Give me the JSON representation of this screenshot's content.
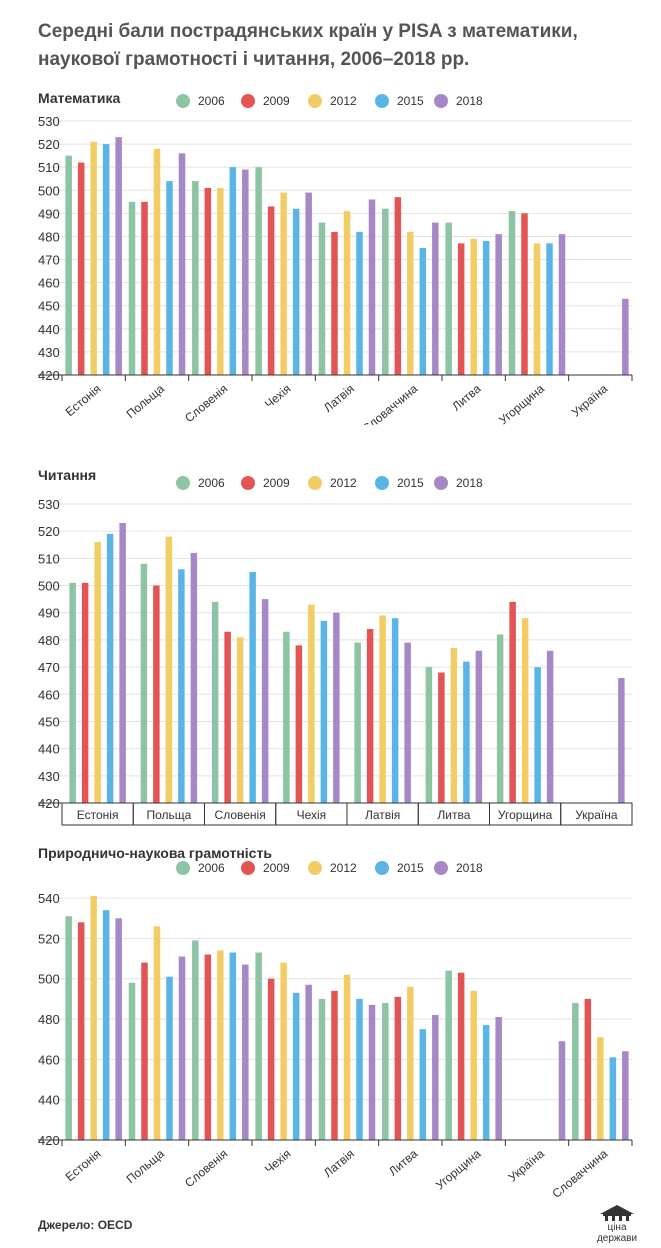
{
  "title": "Середні бали пострадянських країн у PISA з математики, наукової грамотності і читання, 2006–2018 рр.",
  "source": "Джерело: OECD",
  "logo_text": "ціна держави",
  "legend": [
    "2006",
    "2009",
    "2012",
    "2015",
    "2018"
  ],
  "colors": [
    "#8cc4a4",
    "#e35454",
    "#f2cd66",
    "#5ab5e6",
    "#a688c6"
  ],
  "chart_data": [
    {
      "type": "bar",
      "title": "Математика",
      "categories": [
        "Естонія",
        "Польща",
        "Словенія",
        "Чехія",
        "Латвія",
        "Словаччина",
        "Литва",
        "Угорщина",
        "Україна"
      ],
      "series": [
        {
          "name": "2006",
          "values": [
            515,
            495,
            504,
            510,
            486,
            492,
            486,
            491,
            null
          ]
        },
        {
          "name": "2009",
          "values": [
            512,
            495,
            501,
            493,
            482,
            497,
            477,
            490,
            null
          ]
        },
        {
          "name": "2012",
          "values": [
            521,
            518,
            501,
            499,
            491,
            482,
            479,
            477,
            null
          ]
        },
        {
          "name": "2015",
          "values": [
            520,
            504,
            510,
            492,
            482,
            475,
            478,
            477,
            null
          ]
        },
        {
          "name": "2018",
          "values": [
            523,
            516,
            509,
            499,
            496,
            486,
            481,
            481,
            453
          ]
        }
      ],
      "yticks": [
        530,
        520,
        510,
        500,
        490,
        480,
        470,
        460,
        450,
        440,
        430,
        420
      ],
      "ylim": [
        420,
        530
      ],
      "xlabel_rotation": -40
    },
    {
      "type": "bar",
      "title": "Читання",
      "categories": [
        "Естонія",
        "Польща",
        "Словенія",
        "Чехія",
        "Латвія",
        "Литва",
        "Угорщина",
        "Україна"
      ],
      "series": [
        {
          "name": "2006",
          "values": [
            501,
            508,
            494,
            483,
            479,
            470,
            482,
            null
          ]
        },
        {
          "name": "2009",
          "values": [
            501,
            500,
            483,
            478,
            484,
            468,
            494,
            null
          ]
        },
        {
          "name": "2012",
          "values": [
            516,
            518,
            481,
            493,
            489,
            477,
            488,
            null
          ]
        },
        {
          "name": "2015",
          "values": [
            519,
            506,
            505,
            487,
            488,
            472,
            470,
            null
          ]
        },
        {
          "name": "2018",
          "values": [
            523,
            512,
            495,
            490,
            479,
            476,
            476,
            466
          ]
        }
      ],
      "yticks": [
        530,
        520,
        510,
        500,
        490,
        480,
        470,
        460,
        450,
        440,
        430,
        420
      ],
      "ylim": [
        420,
        530
      ],
      "xlabel_rotation": 0
    },
    {
      "type": "bar",
      "title": "Природничо-наукова грамотність",
      "categories": [
        "Естонія",
        "Польща",
        "Словенія",
        "Чехія",
        "Латвія",
        "Литва",
        "Угорщина",
        "Україна",
        "Словаччина"
      ],
      "series": [
        {
          "name": "2006",
          "values": [
            531,
            498,
            519,
            513,
            490,
            488,
            504,
            null,
            488
          ]
        },
        {
          "name": "2009",
          "values": [
            528,
            508,
            512,
            500,
            494,
            491,
            503,
            null,
            490
          ]
        },
        {
          "name": "2012",
          "values": [
            541,
            526,
            514,
            508,
            502,
            496,
            494,
            null,
            471
          ]
        },
        {
          "name": "2015",
          "values": [
            534,
            501,
            513,
            493,
            490,
            475,
            477,
            null,
            461
          ]
        },
        {
          "name": "2018",
          "values": [
            530,
            511,
            507,
            497,
            487,
            482,
            481,
            469,
            464
          ]
        }
      ],
      "yticks": [
        540,
        520,
        500,
        480,
        460,
        440,
        420
      ],
      "ylim": [
        420,
        545
      ],
      "xlabel_rotation": -40
    }
  ]
}
